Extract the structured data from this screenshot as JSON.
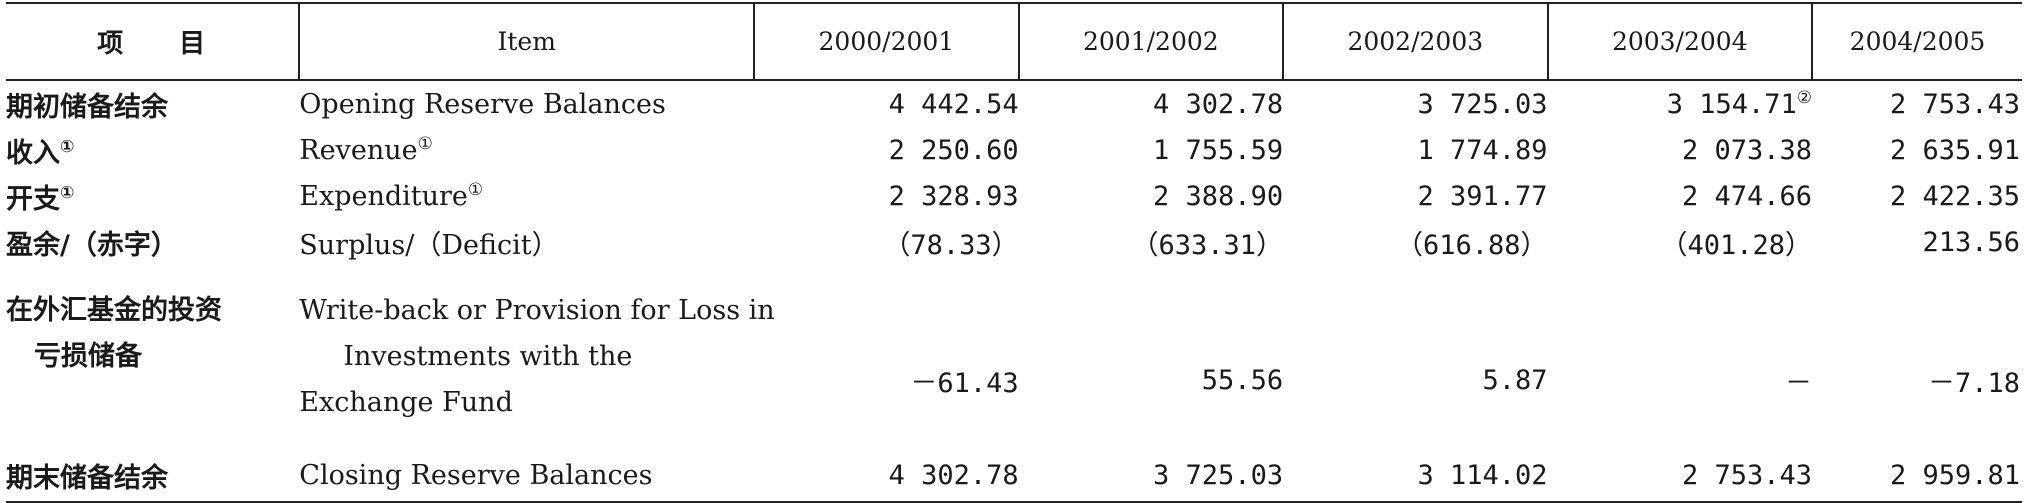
{
  "header": {
    "col1_a": "项",
    "col1_b": "目",
    "col2": "Item",
    "years": [
      "2000/2001",
      "2001/2002",
      "2002/2003",
      "2003/2004",
      "2004/2005"
    ]
  },
  "footnote_marks": {
    "one": "①",
    "two": "②"
  },
  "rows": [
    {
      "zh": "期初储备结余",
      "en": "Opening Reserve Balances",
      "values": [
        "4 442.54",
        "4 302.78",
        "3 725.03",
        "3 154.71",
        "2 753.43"
      ]
    },
    {
      "zh": "收入",
      "en": "Revenue",
      "values": [
        "2 250.60",
        "1 755.59",
        "1 774.89",
        "2 073.38",
        "2 635.91"
      ]
    },
    {
      "zh": "开支",
      "en": "Expenditure",
      "values": [
        "2 328.93",
        "2 388.90",
        "2 391.77",
        "2 474.66",
        "2 422.35"
      ]
    },
    {
      "zh": "盈余/（赤字）",
      "en": "Surplus/（Deficit）",
      "values": [
        "（78.33）",
        "（633.31）",
        "（616.88）",
        "（401.28）",
        "213.56"
      ]
    },
    {
      "zh_line1": "在外汇基金的投资",
      "zh_line2": "亏损储备",
      "en_lines": [
        "Write-back or Provision for Loss in",
        "Investments with the",
        "Exchange Fund"
      ],
      "values": [
        "－61.43",
        "55.56",
        "5.87",
        "－",
        "－7.18"
      ]
    },
    {
      "zh": "期末储备结余",
      "en": "Closing Reserve Balances",
      "values": [
        "4 302.78",
        "3 725.03",
        "3 114.02",
        "2 753.43",
        "2 959.81"
      ]
    }
  ]
}
